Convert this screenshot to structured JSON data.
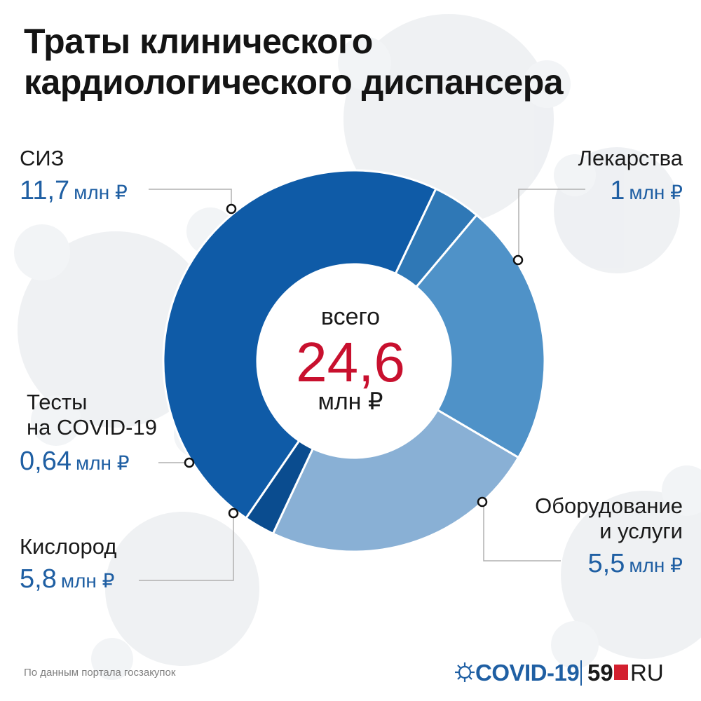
{
  "title_lines": [
    "Траты клинического",
    "кардиологического диспансера"
  ],
  "chart_data": {
    "type": "pie",
    "donut": true,
    "unit": "млн ₽",
    "center": {
      "top": "всего",
      "value": "24,6",
      "unit": "млн ₽"
    },
    "slices": [
      {
        "name": "СИЗ",
        "name_lines": [
          "СИЗ"
        ],
        "value": 11.7,
        "value_label": "11,7",
        "color": "#0f5ba7"
      },
      {
        "name": "Лекарства",
        "name_lines": [
          "Лекарства"
        ],
        "value": 1,
        "value_label": "1",
        "color": "#2f78b6"
      },
      {
        "name": "Оборудование и услуги",
        "name_lines": [
          "Оборудование",
          "и услуги"
        ],
        "value": 5.5,
        "value_label": "5,5",
        "color": "#4f92c8"
      },
      {
        "name": "Кислород",
        "name_lines": [
          "Кислород"
        ],
        "value": 5.8,
        "value_label": "5,8",
        "color": "#89b0d5"
      },
      {
        "name": "Тесты на COVID-19",
        "name_lines": [
          "Тесты",
          "на COVID-19"
        ],
        "value": 0.64,
        "value_label": "0,64",
        "color": "#0a4c8f"
      }
    ],
    "colors": {
      "label_value": "#1f5fa3",
      "center_value": "#c8102e"
    }
  },
  "source": "По данным портала госзакупок",
  "brand": {
    "covid": "COVID-19",
    "number": "59",
    "suffix": "RU"
  }
}
